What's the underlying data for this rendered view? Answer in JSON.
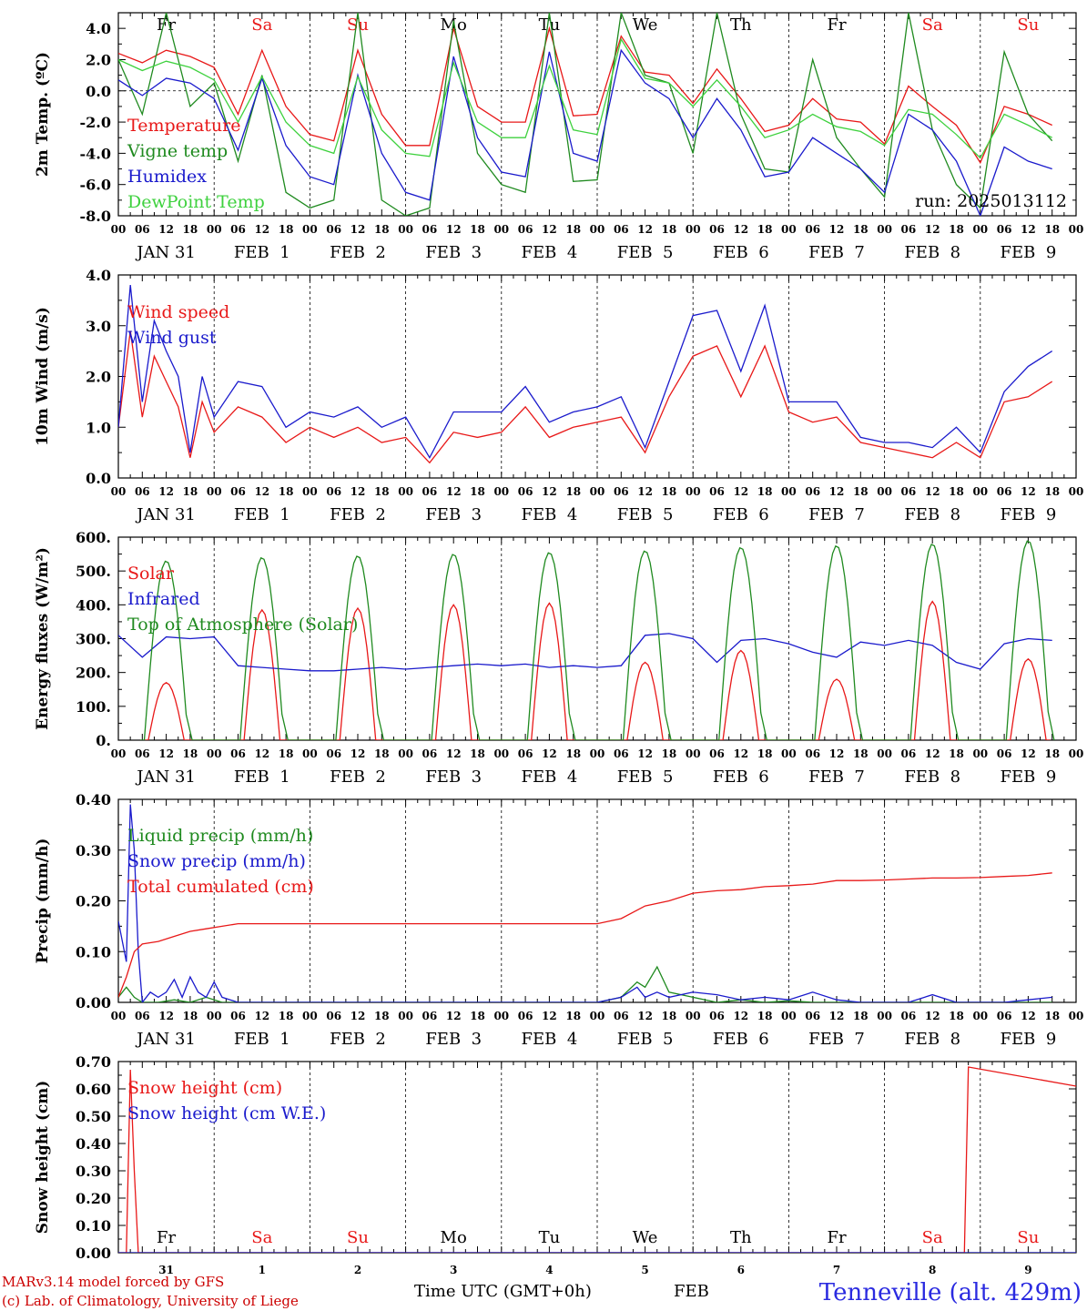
{
  "colors": {
    "red": "#e81818",
    "green": "#1f8a1f",
    "blue": "#1a1acc",
    "lightgreen": "#3ed13e",
    "weekday": "#000000",
    "weekend": "#e81818"
  },
  "time_axis": {
    "hour_labels": [
      "00",
      "06",
      "12",
      "18"
    ],
    "dates": [
      "JAN 31",
      "FEB  1",
      "FEB  2",
      "FEB  3",
      "FEB  4",
      "FEB  5",
      "FEB  6",
      "FEB  7",
      "FEB  8",
      "FEB  9"
    ],
    "date_day_numbers": [
      "31",
      "1",
      "2",
      "3",
      "4",
      "5",
      "6",
      "7",
      "8",
      "9"
    ],
    "weekdays": [
      "Fr",
      "Sa",
      "Su",
      "Mo",
      "Tu",
      "We",
      "Th",
      "Fr",
      "Sa",
      "Su"
    ],
    "weekend_flags": [
      false,
      true,
      true,
      false,
      false,
      false,
      false,
      false,
      true,
      true
    ]
  },
  "footer": {
    "model": "MARv3.14 model forced by GFS",
    "copyright": "(c) Lab. of Climatology, University of Liege",
    "time_label": "Time UTC (GMT+0h)",
    "month": "FEB",
    "location": "Tenneville (alt. 429m)"
  },
  "chart_data": [
    {
      "type": "line",
      "ylabel": "2m Temp. (ºC)",
      "ylim": [
        -8,
        5
      ],
      "yticks": [
        4,
        2,
        0,
        -2,
        -4,
        -6,
        -8
      ],
      "ytick_labels": [
        "4.0",
        "2.0",
        "0.0",
        "-2.0",
        "-4.0",
        "-6.0",
        "-8.0"
      ],
      "zero_line": true,
      "annotation": "run: 2025013112",
      "x_unit": "hours since 2025-01-31 00 UTC",
      "series": [
        {
          "name": "Temperature",
          "color": "red",
          "x": [
            0,
            6,
            12,
            18,
            24,
            30,
            36,
            42,
            48,
            54,
            60,
            66,
            72,
            78,
            84,
            90,
            96,
            102,
            108,
            114,
            120,
            126,
            132,
            138,
            144,
            150,
            156,
            162,
            168,
            174,
            180,
            186,
            192,
            198,
            204,
            210,
            216,
            222,
            228,
            234
          ],
          "values": [
            2.4,
            1.8,
            2.6,
            2.2,
            1.5,
            -1.5,
            2.6,
            -1.0,
            -2.8,
            -3.2,
            2.6,
            -1.5,
            -3.5,
            -3.5,
            4.0,
            -1.0,
            -2.0,
            -2.0,
            4.0,
            -1.6,
            -1.5,
            3.5,
            1.2,
            1.0,
            -0.8,
            1.4,
            -0.5,
            -2.6,
            -2.2,
            -0.5,
            -1.8,
            -2.0,
            -3.4,
            0.3,
            -1.0,
            -2.2,
            -4.6,
            -1.0,
            -1.5,
            -2.2
          ]
        },
        {
          "name": "Vigne temp",
          "color": "green",
          "x": [
            0,
            6,
            12,
            18,
            24,
            30,
            36,
            42,
            48,
            54,
            60,
            66,
            72,
            78,
            84,
            90,
            96,
            102,
            108,
            114,
            120,
            126,
            132,
            138,
            144,
            150,
            156,
            162,
            168,
            174,
            180,
            186,
            192,
            198,
            204,
            210,
            216,
            222,
            228,
            234
          ],
          "values": [
            2.0,
            -1.5,
            5.0,
            -1.0,
            0.5,
            -4.5,
            1.0,
            -6.5,
            -7.5,
            -7.0,
            5.0,
            -7.0,
            -8.0,
            -7.5,
            4.5,
            -4.0,
            -6.0,
            -6.5,
            5.0,
            -5.8,
            -5.7,
            5.0,
            1.0,
            0.5,
            -4.0,
            5.0,
            -1.5,
            -5.0,
            -5.2,
            2.0,
            -3.0,
            -5.0,
            -6.8,
            5.0,
            -2.5,
            -6.0,
            -7.5,
            2.5,
            -1.5,
            -3.2
          ]
        },
        {
          "name": "Humidex",
          "color": "blue",
          "x": [
            0,
            6,
            12,
            18,
            24,
            30,
            36,
            42,
            48,
            54,
            60,
            66,
            72,
            78,
            84,
            90,
            96,
            102,
            108,
            114,
            120,
            126,
            132,
            138,
            144,
            150,
            156,
            162,
            168,
            174,
            180,
            186,
            192,
            198,
            204,
            210,
            216,
            222,
            228,
            234
          ],
          "values": [
            0.7,
            -0.3,
            0.8,
            0.5,
            -0.5,
            -3.8,
            0.8,
            -3.5,
            -5.5,
            -6.0,
            1.0,
            -4.0,
            -6.5,
            -7.0,
            2.2,
            -3.0,
            -5.2,
            -5.5,
            2.5,
            -4.0,
            -4.5,
            2.6,
            0.5,
            -0.5,
            -3.0,
            -0.5,
            -2.5,
            -5.5,
            -5.2,
            -3.0,
            -4.0,
            -5.0,
            -6.5,
            -1.5,
            -2.5,
            -4.5,
            -8.0,
            -3.6,
            -4.5,
            -5.0
          ]
        },
        {
          "name": "DewPoint Temp",
          "color": "lightgreen",
          "x": [
            0,
            6,
            12,
            18,
            24,
            30,
            36,
            42,
            48,
            54,
            60,
            66,
            72,
            78,
            84,
            90,
            96,
            102,
            108,
            114,
            120,
            126,
            132,
            138,
            144,
            150,
            156,
            162,
            168,
            174,
            180,
            186,
            192,
            198,
            204,
            210,
            216,
            222,
            228,
            234
          ],
          "values": [
            2.0,
            1.3,
            1.9,
            1.5,
            0.7,
            -2.0,
            0.9,
            -2.0,
            -3.5,
            -4.0,
            0.9,
            -2.5,
            -4.0,
            -4.2,
            1.8,
            -2.0,
            -3.0,
            -3.0,
            1.6,
            -2.5,
            -2.8,
            3.3,
            0.8,
            0.5,
            -1.0,
            0.7,
            -1.0,
            -3.0,
            -2.5,
            -1.5,
            -2.3,
            -2.6,
            -3.5,
            -1.2,
            -1.5,
            -2.8,
            -4.3,
            -1.5,
            -2.2,
            -3.0
          ]
        }
      ]
    },
    {
      "type": "line",
      "ylabel": "10m Wind (m/s)",
      "ylim": [
        0,
        4
      ],
      "yticks": [
        4,
        3,
        2,
        1,
        0
      ],
      "ytick_labels": [
        "4.0",
        "3.0",
        "2.0",
        "1.0",
        "0.0"
      ],
      "x_unit": "hours since 2025-01-31 00 UTC",
      "series": [
        {
          "name": "Wind speed",
          "color": "red",
          "x": [
            0,
            3,
            6,
            9,
            12,
            15,
            18,
            21,
            24,
            30,
            36,
            42,
            48,
            54,
            60,
            66,
            72,
            78,
            84,
            90,
            96,
            102,
            108,
            114,
            120,
            126,
            132,
            138,
            144,
            150,
            156,
            162,
            168,
            174,
            180,
            186,
            192,
            198,
            204,
            210,
            216,
            222,
            228,
            234
          ],
          "values": [
            1.0,
            2.9,
            1.2,
            2.4,
            1.9,
            1.4,
            0.4,
            1.5,
            0.9,
            1.4,
            1.2,
            0.7,
            1.0,
            0.8,
            1.0,
            0.7,
            0.8,
            0.3,
            0.9,
            0.8,
            0.9,
            1.4,
            0.8,
            1.0,
            1.1,
            1.2,
            0.5,
            1.6,
            2.4,
            2.6,
            1.6,
            2.6,
            1.3,
            1.1,
            1.2,
            0.7,
            0.6,
            0.5,
            0.4,
            0.7,
            0.4,
            1.5,
            1.6,
            1.9
          ]
        },
        {
          "name": "Wind gust",
          "color": "blue",
          "x": [
            0,
            3,
            6,
            9,
            12,
            15,
            18,
            21,
            24,
            30,
            36,
            42,
            48,
            54,
            60,
            66,
            72,
            78,
            84,
            90,
            96,
            102,
            108,
            114,
            120,
            126,
            132,
            138,
            144,
            150,
            156,
            162,
            168,
            174,
            180,
            186,
            192,
            198,
            204,
            210,
            216,
            222,
            228,
            234
          ],
          "values": [
            1.0,
            3.8,
            1.5,
            3.1,
            2.5,
            2.0,
            0.5,
            2.0,
            1.2,
            1.9,
            1.8,
            1.0,
            1.3,
            1.2,
            1.4,
            1.0,
            1.2,
            0.4,
            1.3,
            1.3,
            1.3,
            1.8,
            1.1,
            1.3,
            1.4,
            1.6,
            0.6,
            1.9,
            3.2,
            3.3,
            2.1,
            3.4,
            1.5,
            1.5,
            1.5,
            0.8,
            0.7,
            0.7,
            0.6,
            1.0,
            0.5,
            1.7,
            2.2,
            2.5
          ]
        }
      ]
    },
    {
      "type": "line",
      "ylabel": "Energy fluxes (W/m²)",
      "ylim": [
        0,
        600
      ],
      "yticks": [
        600,
        500,
        400,
        300,
        200,
        100,
        0
      ],
      "ytick_labels": [
        "600.",
        "500.",
        "400.",
        "300.",
        "200.",
        "100.",
        "0."
      ],
      "x_unit": "hours since 2025-01-31 00 UTC",
      "series": [
        {
          "name": "Solar",
          "color": "red",
          "daily_peaks": [
            170,
            385,
            390,
            400,
            405,
            230,
            265,
            180,
            410,
            240
          ],
          "peak_hour": 12,
          "halfwidth_hours": 4.5
        },
        {
          "name": "Infrared",
          "color": "blue",
          "x": [
            0,
            6,
            12,
            18,
            24,
            30,
            36,
            42,
            48,
            54,
            60,
            66,
            72,
            78,
            84,
            90,
            96,
            102,
            108,
            114,
            120,
            126,
            132,
            138,
            144,
            150,
            156,
            162,
            168,
            174,
            180,
            186,
            192,
            198,
            204,
            210,
            216,
            222,
            228,
            234
          ],
          "values": [
            310,
            245,
            305,
            300,
            305,
            220,
            215,
            210,
            205,
            205,
            210,
            215,
            210,
            215,
            220,
            225,
            220,
            225,
            215,
            220,
            215,
            220,
            310,
            315,
            300,
            230,
            295,
            300,
            285,
            260,
            245,
            290,
            280,
            295,
            280,
            230,
            210,
            285,
            300,
            295
          ]
        },
        {
          "name": "Top of Atmosphere (Solar)",
          "color": "green",
          "daily_peaks": [
            530,
            540,
            545,
            550,
            555,
            560,
            570,
            575,
            580,
            590
          ],
          "peak_hour": 12,
          "halfwidth_hours": 5.5
        }
      ]
    },
    {
      "type": "line",
      "ylabel": "Precip (mm/h)",
      "ylim": [
        0,
        0.4
      ],
      "yticks": [
        0.4,
        0.3,
        0.2,
        0.1,
        0
      ],
      "ytick_labels": [
        "0.40",
        "0.30",
        "0.20",
        "0.10",
        "0.00"
      ],
      "x_unit": "hours since 2025-01-31 00 UTC",
      "series": [
        {
          "name": "Liquid precip (mm/h)",
          "color": "green",
          "x": [
            0,
            2,
            4,
            6,
            10,
            14,
            18,
            22,
            26,
            30,
            60,
            90,
            120,
            126,
            130,
            132,
            135,
            138,
            144,
            150,
            156,
            162,
            168,
            174,
            180,
            186,
            192,
            198,
            204,
            210,
            216,
            222,
            228,
            234
          ],
          "values": [
            0.01,
            0.03,
            0.01,
            0.0,
            0.0,
            0.005,
            0.0,
            0.01,
            0.0,
            0.0,
            0.0,
            0.0,
            0.0,
            0.01,
            0.04,
            0.03,
            0.07,
            0.02,
            0.01,
            0.0,
            0.005,
            0.0,
            0.003,
            0.0,
            0.0,
            0.0,
            0.0,
            0.0,
            0.0,
            0.0,
            0.0,
            0.0,
            0.0,
            0.0
          ]
        },
        {
          "name": "Snow precip (mm/h)",
          "color": "blue",
          "x": [
            0,
            2,
            3,
            4,
            5,
            6,
            8,
            10,
            12,
            14,
            16,
            18,
            20,
            22,
            24,
            26,
            30,
            60,
            90,
            120,
            126,
            130,
            132,
            135,
            138,
            144,
            150,
            156,
            162,
            168,
            174,
            180,
            186,
            192,
            198,
            204,
            210,
            216,
            222,
            228,
            234
          ],
          "values": [
            0.16,
            0.08,
            0.39,
            0.3,
            0.1,
            0.0,
            0.02,
            0.01,
            0.02,
            0.045,
            0.01,
            0.05,
            0.02,
            0.01,
            0.04,
            0.01,
            0.0,
            0.0,
            0.0,
            0.0,
            0.01,
            0.03,
            0.01,
            0.02,
            0.01,
            0.02,
            0.015,
            0.005,
            0.01,
            0.005,
            0.02,
            0.005,
            0.0,
            0.0,
            0.0,
            0.015,
            0.0,
            0.0,
            0.0,
            0.005,
            0.01
          ]
        },
        {
          "name": "Total cumulated (cm)",
          "color": "red",
          "x": [
            0,
            2,
            4,
            6,
            10,
            14,
            18,
            22,
            26,
            30,
            60,
            90,
            120,
            126,
            132,
            138,
            144,
            150,
            156,
            162,
            168,
            174,
            180,
            186,
            192,
            198,
            204,
            210,
            216,
            222,
            228,
            234
          ],
          "values": [
            0.01,
            0.05,
            0.1,
            0.115,
            0.12,
            0.13,
            0.14,
            0.145,
            0.15,
            0.155,
            0.155,
            0.155,
            0.155,
            0.165,
            0.19,
            0.2,
            0.215,
            0.22,
            0.222,
            0.228,
            0.23,
            0.233,
            0.24,
            0.24,
            0.241,
            0.243,
            0.245,
            0.245,
            0.246,
            0.248,
            0.25,
            0.255
          ]
        }
      ]
    },
    {
      "type": "line",
      "ylabel": "Snow height (cm)",
      "ylim": [
        0,
        0.7
      ],
      "yticks": [
        0.7,
        0.6,
        0.5,
        0.4,
        0.3,
        0.2,
        0.1,
        0
      ],
      "ytick_labels": [
        "0.70",
        "0.60",
        "0.50",
        "0.40",
        "0.30",
        "0.20",
        "0.10",
        "0.00"
      ],
      "x_unit": "hours since 2025-01-31 00 UTC",
      "series": [
        {
          "name": "Snow height (cm)",
          "color": "red",
          "x": [
            0,
            2,
            3,
            4,
            5,
            212,
            213,
            240
          ],
          "values": [
            0,
            0,
            0.67,
            0.3,
            0,
            0,
            0.68,
            0.61
          ]
        },
        {
          "name": "Snow height (cm W.E.)",
          "color": "blue",
          "x": [
            0,
            240
          ],
          "values": [
            0,
            0
          ]
        }
      ]
    }
  ]
}
